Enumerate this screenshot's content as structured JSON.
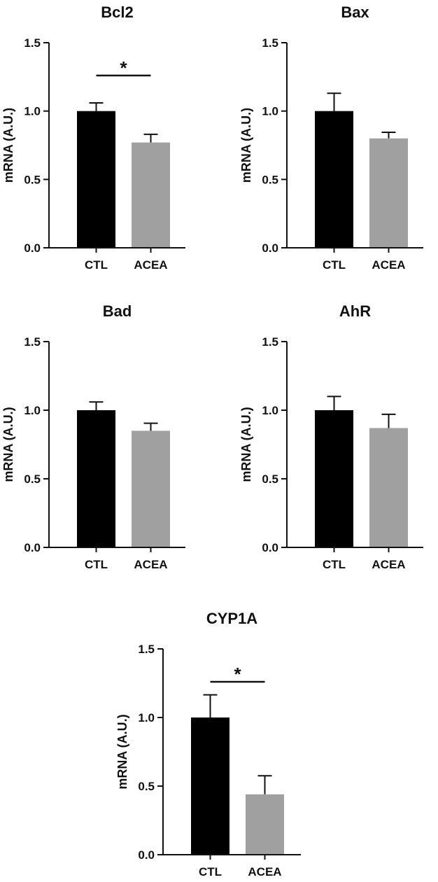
{
  "chart_data": [
    {
      "type": "bar",
      "title": "Bcl2",
      "ylabel": "mRNA (A.U.)",
      "xlabel": "",
      "categories": [
        "CTL",
        "ACEA"
      ],
      "values": [
        1.0,
        0.77
      ],
      "errors": [
        0.06,
        0.06
      ],
      "colors": [
        "#000000",
        "#a0a0a0"
      ],
      "ylim": [
        0,
        1.5
      ],
      "yticks": [
        "0.0",
        "0.5",
        "1.0",
        "1.5"
      ],
      "significance": "*"
    },
    {
      "type": "bar",
      "title": "Bax",
      "ylabel": "mRNA (A.U.)",
      "xlabel": "",
      "categories": [
        "CTL",
        "ACEA"
      ],
      "values": [
        1.0,
        0.8
      ],
      "errors": [
        0.13,
        0.045
      ],
      "colors": [
        "#000000",
        "#a0a0a0"
      ],
      "ylim": [
        0,
        1.5
      ],
      "yticks": [
        "0.0",
        "0.5",
        "1.0",
        "1.5"
      ],
      "significance": ""
    },
    {
      "type": "bar",
      "title": "Bad",
      "ylabel": "mRNA (A.U.)",
      "xlabel": "",
      "categories": [
        "CTL",
        "ACEA"
      ],
      "values": [
        1.0,
        0.85
      ],
      "errors": [
        0.06,
        0.055
      ],
      "colors": [
        "#000000",
        "#a0a0a0"
      ],
      "ylim": [
        0,
        1.5
      ],
      "yticks": [
        "0.0",
        "0.5",
        "1.0",
        "1.5"
      ],
      "significance": ""
    },
    {
      "type": "bar",
      "title": "AhR",
      "ylabel": "mRNA (A.U.)",
      "xlabel": "",
      "categories": [
        "CTL",
        "ACEA"
      ],
      "values": [
        1.0,
        0.87
      ],
      "errors": [
        0.1,
        0.1
      ],
      "colors": [
        "#000000",
        "#a0a0a0"
      ],
      "ylim": [
        0,
        1.5
      ],
      "yticks": [
        "0.0",
        "0.5",
        "1.0",
        "1.5"
      ],
      "significance": ""
    },
    {
      "type": "bar",
      "title": "CYP1A",
      "ylabel": "mRNA (A.U.)",
      "xlabel": "",
      "categories": [
        "CTL",
        "ACEA"
      ],
      "values": [
        1.0,
        0.44
      ],
      "errors": [
        0.165,
        0.135
      ],
      "colors": [
        "#000000",
        "#a0a0a0"
      ],
      "ylim": [
        0,
        1.5
      ],
      "yticks": [
        "0.0",
        "0.5",
        "1.0",
        "1.5"
      ],
      "significance": "*"
    }
  ]
}
